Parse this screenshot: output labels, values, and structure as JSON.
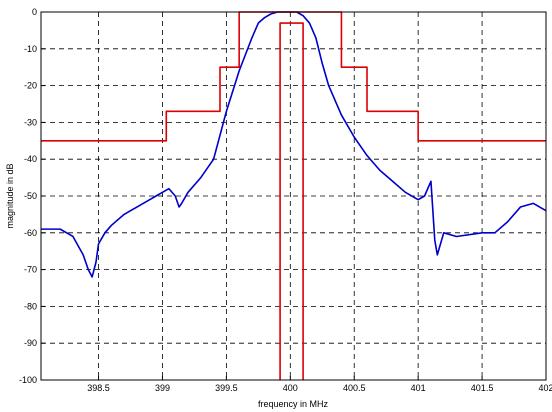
{
  "chart_data": {
    "type": "line",
    "title": "",
    "xlabel": "frequency in MHz",
    "ylabel": "magnitude in dB",
    "xlim": [
      398.05,
      402.0
    ],
    "ylim": [
      -100,
      0
    ],
    "grid": true,
    "x_ticks": [
      398.5,
      399,
      399.5,
      400,
      400.5,
      401,
      401.5,
      402
    ],
    "x_tick_labels": [
      "398.5",
      "399",
      "399.5",
      "400",
      "400.5",
      "401",
      "401.5",
      "402"
    ],
    "y_ticks": [
      0,
      -10,
      -20,
      -30,
      -40,
      -50,
      -60,
      -70,
      -80,
      -90,
      -100
    ],
    "y_tick_labels": [
      "0",
      "-10",
      "-20",
      "-30",
      "-40",
      "-50",
      "-60",
      "-70",
      "-80",
      "-90",
      "-100"
    ],
    "series": [
      {
        "color": "#0000cc",
        "x": [
          398.05,
          398.2,
          398.3,
          398.38,
          398.42,
          398.45,
          398.48,
          398.5,
          398.55,
          398.6,
          398.7,
          398.8,
          398.9,
          398.95,
          399.0,
          399.05,
          399.1,
          399.13,
          399.15,
          399.2,
          399.3,
          399.4,
          399.5,
          399.6,
          399.7,
          399.75,
          399.8,
          399.85,
          399.9,
          400.0,
          400.05,
          400.1,
          400.15,
          400.2,
          400.25,
          400.3,
          400.4,
          400.5,
          400.6,
          400.7,
          400.8,
          400.9,
          401.0,
          401.05,
          401.1,
          401.13,
          401.15,
          401.2,
          401.3,
          401.5,
          401.6,
          401.7,
          401.8,
          401.9,
          402.0
        ],
        "values": [
          -59,
          -59,
          -61,
          -66,
          -70,
          -72,
          -68,
          -63,
          -60,
          -58,
          -55,
          -53,
          -51,
          -50,
          -49,
          -48,
          -50,
          -53,
          -52,
          -49,
          -45,
          -40,
          -27,
          -16,
          -7,
          -3,
          -1.5,
          -0.5,
          0,
          0,
          0,
          -1,
          -3,
          -7,
          -14,
          -20,
          -28,
          -34,
          -39,
          -43,
          -46,
          -49,
          -51,
          -50,
          -46,
          -62,
          -66,
          -60,
          -61,
          -60,
          -60,
          -57,
          -53,
          -52,
          -54
        ]
      },
      {
        "color": "#dd0000",
        "x": [
          398.05,
          399.03,
          399.03,
          399.45,
          399.45,
          399.6,
          399.6,
          400.4,
          400.4,
          400.6,
          400.6,
          401.0,
          401.0,
          402.0
        ],
        "values": [
          -35,
          -35,
          -27,
          -27,
          -15,
          -15,
          0,
          0,
          -15,
          -15,
          -27,
          -27,
          -35,
          -35
        ]
      },
      {
        "color": "#dd0000",
        "x": [
          399.92,
          399.92,
          400.1,
          400.1
        ],
        "values": [
          -100,
          -3,
          -3,
          -100
        ]
      }
    ]
  }
}
